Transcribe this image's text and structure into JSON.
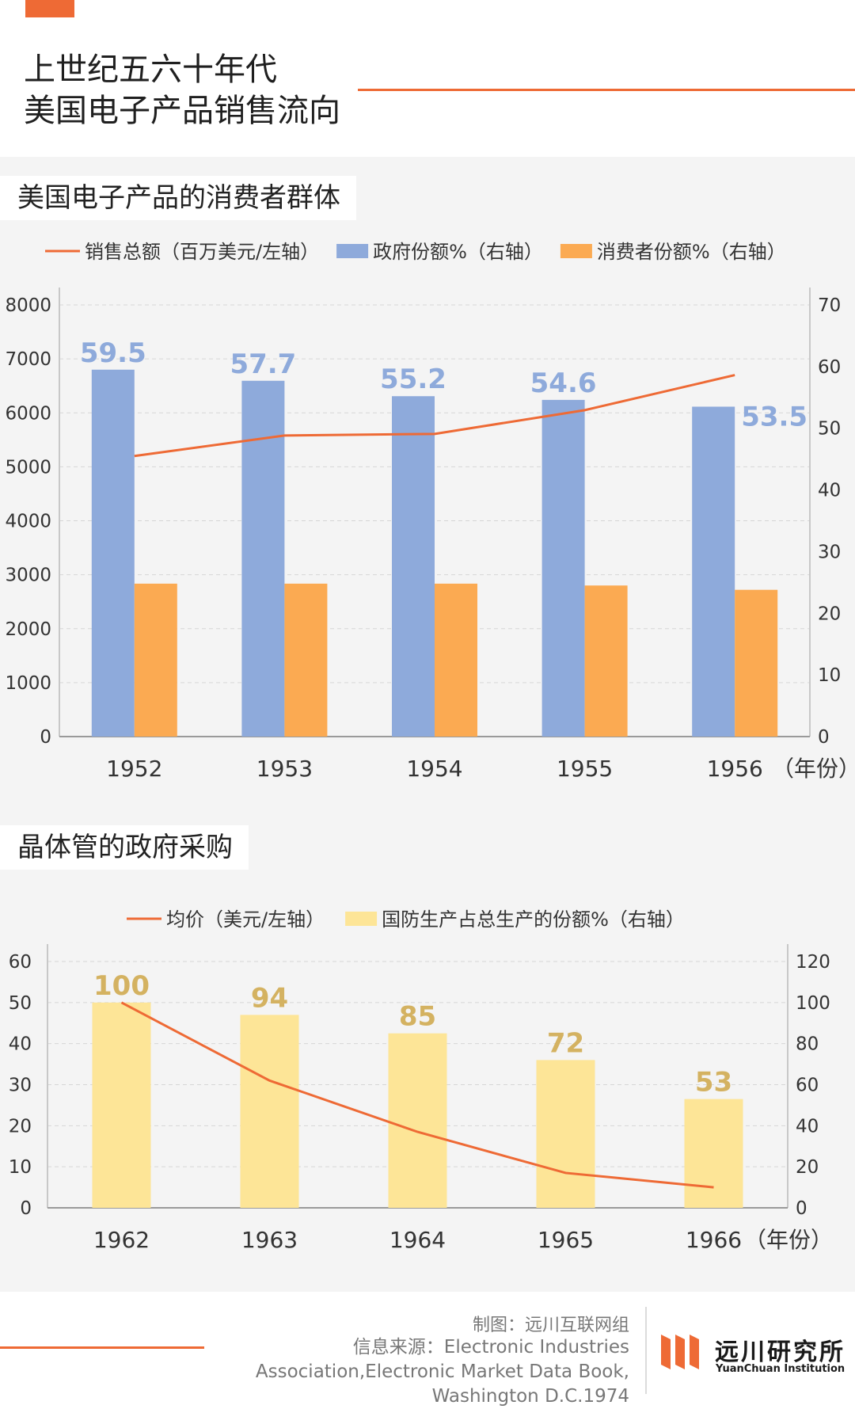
{
  "page": {
    "title_line1": "上世纪五六十年代",
    "title_line2": "美国电子产品销售流向"
  },
  "colors": {
    "accent": "#ee6a35",
    "blue_bar": "#8eaadb",
    "orange_bar": "#fbaa52",
    "yellow_bar": "#fde597",
    "line": "#ee6a35",
    "blue_label": "#8eaadb",
    "yellow_label": "#d4b261"
  },
  "chart_data": [
    {
      "type": "bar",
      "title": "美国电子产品的消费者群体",
      "categories": [
        "1952",
        "1953",
        "1954",
        "1955",
        "1956"
      ],
      "x_unit_label": "（年份）",
      "legend": [
        "销售总额（百万美元/左轴）",
        "政府份额%（右轴）",
        "消费者份额%（右轴）"
      ],
      "series": [
        {
          "name": "销售总额（百万美元/左轴）",
          "kind": "line",
          "axis": "left",
          "values": [
            5200,
            5580,
            5610,
            6050,
            6700
          ]
        },
        {
          "name": "政府份额%（右轴）",
          "kind": "bar",
          "axis": "right",
          "values": [
            59.5,
            57.7,
            55.2,
            54.6,
            53.5
          ],
          "labels": [
            "59.5",
            "57.7",
            "55.2",
            "54.6",
            "53.5"
          ]
        },
        {
          "name": "消费者份额%（右轴）",
          "kind": "bar",
          "axis": "right",
          "values": [
            24.8,
            24.8,
            24.8,
            24.5,
            23.8
          ]
        }
      ],
      "y_left": {
        "min": 0,
        "max": 8000,
        "ticks": [
          "0",
          "1000",
          "2000",
          "3000",
          "4000",
          "5000",
          "6000",
          "7000",
          "8000"
        ]
      },
      "y_right": {
        "min": 0,
        "max": 70,
        "ticks": [
          "0",
          "10",
          "20",
          "30",
          "40",
          "50",
          "60",
          "70"
        ]
      },
      "grid": true,
      "legend_position": "top"
    },
    {
      "type": "bar",
      "title": "晶体管的政府采购",
      "categories": [
        "1962",
        "1963",
        "1964",
        "1965",
        "1966"
      ],
      "x_unit_label": "（年份）",
      "legend": [
        "均价（美元/左轴）",
        "国防生产占总生产的份额%（右轴）"
      ],
      "series": [
        {
          "name": "均价（美元/左轴）",
          "kind": "line",
          "axis": "left",
          "values": [
            50,
            31,
            18.5,
            8.5,
            5
          ]
        },
        {
          "name": "国防生产占总生产的份额%（右轴）",
          "kind": "bar",
          "axis": "right",
          "values": [
            100,
            94,
            85,
            72,
            53
          ],
          "labels": [
            "100",
            "94",
            "85",
            "72",
            "53"
          ]
        }
      ],
      "y_left": {
        "min": 0,
        "max": 60,
        "ticks": [
          "0",
          "10",
          "20",
          "30",
          "40",
          "50",
          "60"
        ]
      },
      "y_right": {
        "min": 0,
        "max": 120,
        "ticks": [
          "0",
          "20",
          "40",
          "60",
          "80",
          "100",
          "120"
        ]
      },
      "grid": true,
      "legend_position": "top"
    }
  ],
  "footer": {
    "credit": "制图：远川互联网组",
    "source": "信息来源：Electronic Industries Association,Electronic Market Data Book, Washington D.C.1974",
    "logo_cn": "远川研究所",
    "logo_en": "YuanChuan Institution"
  }
}
